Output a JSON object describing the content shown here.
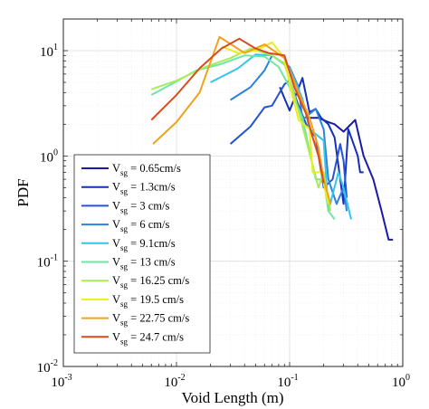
{
  "chart_data": {
    "type": "line",
    "title": "",
    "xlabel": "Void Length  (m)",
    "ylabel": "PDF",
    "xscale": "log",
    "yscale": "log",
    "xlim": [
      0.001,
      1
    ],
    "ylim": [
      0.01,
      20
    ],
    "x_ticks": [
      {
        "base": "10",
        "exp": "-3"
      },
      {
        "base": "10",
        "exp": "-2"
      },
      {
        "base": "10",
        "exp": "-1"
      },
      {
        "base": "10",
        "exp": "0"
      }
    ],
    "y_ticks": [
      {
        "base": "10",
        "exp": "-2"
      },
      {
        "base": "10",
        "exp": "-1"
      },
      {
        "base": "10",
        "exp": "0"
      },
      {
        "base": "10",
        "exp": "1"
      }
    ],
    "grid": true,
    "legend_position": "bottom-left",
    "series": [
      {
        "name": "V_sg = 0.65cm/s",
        "label_main": "V",
        "label_sub": "sg",
        "label_rest": " = 0.65cm/s",
        "color": "#1a1aa6",
        "points": [
          [
            0.14,
            2.3
          ],
          [
            0.18,
            2.3
          ],
          [
            0.22,
            2.1
          ],
          [
            0.25,
            2.0
          ],
          [
            0.3,
            1.7
          ],
          [
            0.38,
            2.2
          ],
          [
            0.45,
            1.0
          ],
          [
            0.55,
            0.6
          ],
          [
            0.65,
            0.3
          ],
          [
            0.75,
            0.16
          ],
          [
            0.82,
            0.16
          ]
        ]
      },
      {
        "name": "V_sg = 1.3cm/s",
        "label_main": "V",
        "label_sub": "sg",
        "label_rest": " = 1.3cm/s",
        "color": "#1530b8",
        "points": [
          [
            0.082,
            4.5
          ],
          [
            0.1,
            2.7
          ],
          [
            0.13,
            5.5
          ],
          [
            0.15,
            2.6
          ],
          [
            0.17,
            2.8
          ],
          [
            0.19,
            2.3
          ],
          [
            0.22,
            2.0
          ],
          [
            0.25,
            1.5
          ],
          [
            0.3,
            0.35
          ],
          [
            0.33,
            1.8
          ],
          [
            0.4,
            1.0
          ],
          [
            0.42,
            0.7
          ],
          [
            0.45,
            0.7
          ]
        ]
      },
      {
        "name": "V_sg = 3 cm/s",
        "label_main": "V",
        "label_sub": "sg",
        "label_rest": " = 3 cm/s",
        "color": "#2652d6",
        "points": [
          [
            0.03,
            1.3
          ],
          [
            0.045,
            1.9
          ],
          [
            0.06,
            2.9
          ],
          [
            0.07,
            3.0
          ],
          [
            0.09,
            4.8
          ],
          [
            0.1,
            5.2
          ],
          [
            0.12,
            3.0
          ],
          [
            0.14,
            2.0
          ],
          [
            0.17,
            1.5
          ],
          [
            0.2,
            0.5
          ],
          [
            0.24,
            0.6
          ],
          [
            0.28,
            1.3
          ],
          [
            0.3,
            0.9
          ],
          [
            0.32,
            0.4
          ]
        ]
      },
      {
        "name": "V_sg = 6 cm/s",
        "label_main": "V",
        "label_sub": "sg",
        "label_rest": " = 6 cm/s",
        "color": "#2c82de",
        "points": [
          [
            0.03,
            3.4
          ],
          [
            0.045,
            4.5
          ],
          [
            0.06,
            6.5
          ],
          [
            0.07,
            9.0
          ],
          [
            0.1,
            7.0
          ],
          [
            0.12,
            4.5
          ],
          [
            0.13,
            2.2
          ],
          [
            0.17,
            2.8
          ],
          [
            0.2,
            1.8
          ],
          [
            0.22,
            0.6
          ],
          [
            0.26,
            0.35
          ],
          [
            0.3,
            0.5
          ],
          [
            0.32,
            0.3
          ]
        ]
      },
      {
        "name": "V_sg = 9.1cm/s",
        "label_main": "V",
        "label_sub": "sg",
        "label_rest": " = 9.1cm/s",
        "color": "#35c4ec",
        "points": [
          [
            0.02,
            5.0
          ],
          [
            0.035,
            6.8
          ],
          [
            0.05,
            9.2
          ],
          [
            0.07,
            9.0
          ],
          [
            0.1,
            6.8
          ],
          [
            0.13,
            3.5
          ],
          [
            0.15,
            1.8
          ],
          [
            0.2,
            1.4
          ],
          [
            0.22,
            0.3
          ],
          [
            0.27,
            0.7
          ],
          [
            0.3,
            0.5
          ],
          [
            0.35,
            0.25
          ]
        ]
      },
      {
        "name": "V_sg = 13 cm/s",
        "label_main": "V",
        "label_sub": "sg",
        "label_rest": " = 13 cm/s",
        "color": "#6ee6a6",
        "points": [
          [
            0.006,
            3.8
          ],
          [
            0.009,
            4.8
          ],
          [
            0.015,
            6.5
          ],
          [
            0.025,
            7.5
          ],
          [
            0.04,
            9.0
          ],
          [
            0.06,
            8.8
          ],
          [
            0.08,
            7.0
          ],
          [
            0.1,
            4.5
          ],
          [
            0.13,
            2.3
          ],
          [
            0.17,
            0.6
          ],
          [
            0.2,
            0.6
          ],
          [
            0.22,
            0.3
          ],
          [
            0.25,
            0.25
          ]
        ]
      },
      {
        "name": "V_sg = 16.25 cm/s",
        "label_main": "V",
        "label_sub": "sg",
        "label_rest": " = 16.25 cm/s",
        "color": "#a8ec5a",
        "points": [
          [
            0.006,
            4.3
          ],
          [
            0.01,
            5.2
          ],
          [
            0.018,
            7.0
          ],
          [
            0.03,
            8.5
          ],
          [
            0.045,
            10.5
          ],
          [
            0.07,
            9.0
          ],
          [
            0.09,
            7.5
          ],
          [
            0.11,
            3.8
          ],
          [
            0.14,
            1.4
          ],
          [
            0.18,
            0.5
          ],
          [
            0.2,
            0.7
          ],
          [
            0.23,
            0.3
          ]
        ]
      },
      {
        "name": "V_sg = 19.5 cm/s",
        "label_main": "V",
        "label_sub": "sg",
        "label_rest": " = 19.5 cm/s",
        "color": "#ecec20",
        "points": [
          [
            0.025,
            11.0
          ],
          [
            0.035,
            9.5
          ],
          [
            0.05,
            10.0
          ],
          [
            0.07,
            12.0
          ],
          [
            0.09,
            8.5
          ],
          [
            0.1,
            4.8
          ],
          [
            0.12,
            2.2
          ],
          [
            0.15,
            1.8
          ],
          [
            0.16,
            0.7
          ],
          [
            0.19,
            0.7
          ],
          [
            0.22,
            0.35
          ]
        ]
      },
      {
        "name": "V_sg = 22.75 cm/s",
        "label_main": "V",
        "label_sub": "sg",
        "label_rest": " = 22.75 cm/s",
        "color": "#f0a21a",
        "points": [
          [
            0.0062,
            1.3
          ],
          [
            0.01,
            2.1
          ],
          [
            0.016,
            4.0
          ],
          [
            0.024,
            13.5
          ],
          [
            0.04,
            9.5
          ],
          [
            0.06,
            11.5
          ],
          [
            0.09,
            8.5
          ],
          [
            0.12,
            4.0
          ],
          [
            0.15,
            2.3
          ],
          [
            0.18,
            1.2
          ],
          [
            0.2,
            0.6
          ],
          [
            0.23,
            0.35
          ]
        ]
      },
      {
        "name": "V_sg = 24.7 cm/s",
        "label_main": "V",
        "label_sub": "sg",
        "label_rest": " = 24.7 cm/s",
        "color": "#d94b1c",
        "points": [
          [
            0.006,
            2.2
          ],
          [
            0.01,
            3.8
          ],
          [
            0.016,
            6.8
          ],
          [
            0.025,
            10.5
          ],
          [
            0.036,
            13.0
          ],
          [
            0.05,
            10.5
          ],
          [
            0.065,
            9.5
          ],
          [
            0.09,
            9.0
          ],
          [
            0.11,
            4.5
          ],
          [
            0.14,
            2.5
          ],
          [
            0.16,
            1.5
          ],
          [
            0.18,
            1.0
          ],
          [
            0.2,
            0.55
          ]
        ]
      }
    ]
  }
}
